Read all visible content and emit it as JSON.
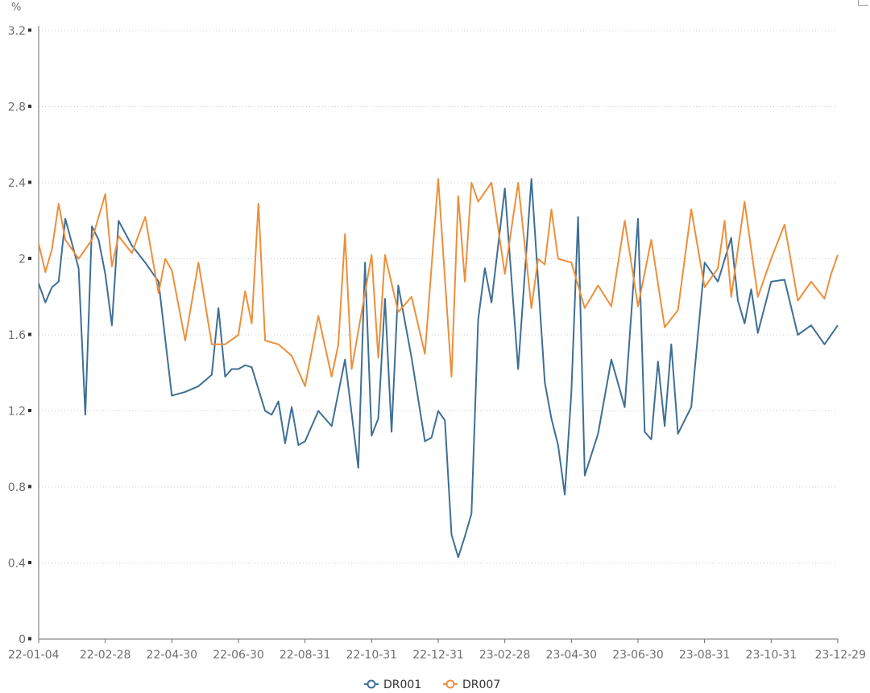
{
  "chart_data": {
    "type": "line",
    "title": "",
    "ylabel": "%",
    "xlabel": "",
    "ylim": [
      0,
      3.2
    ],
    "yticks": [
      0,
      0.4,
      0.8,
      1.2,
      1.6,
      2,
      2.4,
      2.8,
      3.2
    ],
    "ytick_labels": [
      "0",
      "0.4",
      "0.8",
      "1.2",
      "1.6",
      "2",
      "2.4",
      "2.8",
      "3.2"
    ],
    "x_tick_labels": [
      "22-01-04",
      "22-02-28",
      "22-04-30",
      "22-06-30",
      "22-08-31",
      "22-10-31",
      "22-12-31",
      "23-02-28",
      "23-04-30",
      "23-06-30",
      "23-08-31",
      "23-10-31",
      "23-12-29"
    ],
    "grid": "horizontal-dotted",
    "legend_position": "bottom-center",
    "series": [
      {
        "name": "DR001",
        "color": "#3e6f95",
        "x": [
          0.0,
          0.5,
          1.0,
          1.5,
          2.0,
          3.0,
          3.5,
          4.0,
          4.5,
          5.0,
          5.5,
          6.0,
          7.0,
          8.0,
          9.0,
          10.0,
          11.0,
          12.0,
          13.0,
          13.5,
          14.0,
          14.5,
          15.0,
          15.5,
          16.0,
          17.0,
          17.5,
          18.0,
          18.5,
          19.0,
          19.5,
          20.0,
          21.0,
          22.0,
          23.0,
          24.0,
          24.5,
          25.0,
          25.5,
          26.0,
          26.5,
          27.0,
          28.0,
          29.0,
          29.5,
          30.0,
          30.5,
          31.0,
          31.5,
          32.0,
          32.5,
          33.0,
          33.5,
          34.0,
          35.0,
          36.0,
          37.0,
          38.0,
          38.5,
          39.0,
          39.5,
          40.0,
          40.5,
          41.0,
          42.0,
          43.0,
          44.0,
          45.0,
          45.5,
          46.0,
          46.5,
          47.0,
          47.5,
          48.0,
          49.0,
          50.0,
          51.0,
          52.0,
          52.5,
          53.0,
          53.5,
          54.0,
          55.0,
          56.0,
          57.0,
          58.0,
          59.0,
          60.0
        ],
        "values": [
          1.87,
          1.77,
          1.85,
          1.88,
          2.21,
          1.95,
          1.18,
          2.17,
          2.1,
          1.92,
          1.65,
          2.2,
          2.07,
          1.98,
          1.88,
          1.28,
          1.3,
          1.33,
          1.39,
          1.74,
          1.38,
          1.42,
          1.42,
          1.44,
          1.43,
          1.2,
          1.18,
          1.25,
          1.03,
          1.22,
          1.02,
          1.04,
          1.2,
          1.12,
          1.47,
          0.9,
          1.98,
          1.07,
          1.16,
          1.79,
          1.09,
          1.86,
          1.48,
          1.04,
          1.06,
          1.2,
          1.15,
          0.55,
          0.43,
          0.54,
          0.66,
          1.68,
          1.95,
          1.77,
          2.37,
          1.42,
          2.42,
          1.35,
          1.16,
          1.02,
          0.76,
          1.3,
          2.22,
          0.86,
          1.08,
          1.47,
          1.22,
          2.21,
          1.09,
          1.05,
          1.46,
          1.12,
          1.55,
          1.08,
          1.22,
          1.98,
          1.88,
          2.11,
          1.78,
          1.66,
          1.84,
          1.61,
          1.88,
          1.89,
          1.6,
          1.65,
          1.55,
          1.65
        ],
        "point_count": 88
      },
      {
        "name": "DR007",
        "color": "#ed8f3a",
        "x": [
          0.0,
          0.5,
          1.0,
          1.5,
          2.0,
          3.0,
          4.0,
          5.0,
          5.5,
          6.0,
          7.0,
          8.0,
          9.0,
          9.5,
          10.0,
          11.0,
          12.0,
          13.0,
          14.0,
          15.0,
          15.5,
          16.0,
          16.5,
          17.0,
          18.0,
          19.0,
          20.0,
          21.0,
          22.0,
          22.5,
          23.0,
          23.5,
          24.0,
          25.0,
          25.5,
          26.0,
          27.0,
          28.0,
          29.0,
          30.0,
          31.0,
          31.5,
          32.0,
          32.5,
          33.0,
          34.0,
          35.0,
          36.0,
          37.0,
          37.5,
          38.0,
          38.5,
          39.0,
          40.0,
          41.0,
          42.0,
          43.0,
          44.0,
          45.0,
          46.0,
          47.0,
          48.0,
          49.0,
          50.0,
          51.0,
          51.5,
          52.0,
          53.0,
          54.0,
          55.0,
          56.0,
          57.0,
          58.0,
          59.0,
          59.5,
          60.0
        ],
        "values": [
          2.08,
          1.93,
          2.05,
          2.29,
          2.1,
          2.0,
          2.1,
          2.34,
          1.96,
          2.12,
          2.03,
          2.22,
          1.82,
          2.0,
          1.94,
          1.57,
          1.98,
          1.55,
          1.55,
          1.6,
          1.83,
          1.66,
          2.29,
          1.57,
          1.55,
          1.49,
          1.33,
          1.7,
          1.38,
          1.55,
          2.13,
          1.42,
          1.62,
          2.02,
          1.48,
          2.02,
          1.72,
          1.8,
          1.5,
          2.42,
          1.38,
          2.33,
          1.88,
          2.4,
          2.3,
          2.4,
          1.92,
          2.4,
          1.74,
          2.0,
          1.97,
          2.26,
          2.0,
          1.98,
          1.74,
          1.86,
          1.75,
          2.2,
          1.75,
          2.1,
          1.64,
          1.73,
          2.26,
          1.85,
          1.95,
          2.2,
          1.8,
          2.3,
          1.8,
          2.0,
          2.18,
          1.78,
          1.88,
          1.79,
          1.92,
          2.02
        ],
        "point_count": 76
      }
    ]
  },
  "legend": {
    "items": [
      {
        "label": "DR001",
        "color": "#3e6f95"
      },
      {
        "label": "DR007",
        "color": "#ed8f3a"
      }
    ]
  }
}
